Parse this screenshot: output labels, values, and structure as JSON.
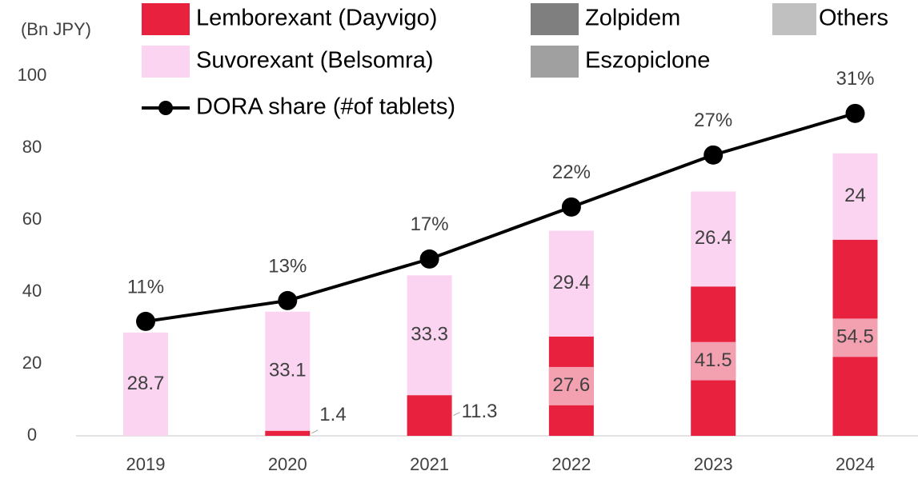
{
  "chart_data": {
    "type": "bar",
    "y_label": "(Bn JPY)",
    "categories": [
      "2019",
      "2020",
      "2021",
      "2022",
      "2023",
      "2024"
    ],
    "ylim": [
      0,
      100
    ],
    "yticks": [
      0,
      20,
      40,
      60,
      80,
      100
    ],
    "y2lim": [
      0,
      34.6
    ],
    "series": [
      {
        "name": "Lemborexant (Dayvigo)",
        "color": "#e8213f",
        "values": [
          null,
          1.4,
          11.3,
          27.6,
          41.5,
          54.5
        ]
      },
      {
        "name": "Suvorexant (Belsomra)",
        "color": "#fad4f0",
        "values": [
          28.7,
          33.1,
          33.3,
          29.4,
          26.4,
          24.0
        ]
      },
      {
        "name": "Zolpidem",
        "color": "#7f7f7f",
        "values": [
          null,
          null,
          null,
          null,
          null,
          null
        ]
      },
      {
        "name": "Eszopiclone",
        "color": "#a0a0a0",
        "values": [
          null,
          null,
          null,
          null,
          null,
          null
        ]
      },
      {
        "name": "Others",
        "color": "#c0c0c0",
        "values": [
          null,
          null,
          null,
          null,
          null,
          null
        ]
      },
      {
        "name": "DORA share (#of tablets)",
        "type": "line",
        "axis": "y2",
        "color": "#000000",
        "values": [
          11,
          13,
          17,
          22,
          27,
          31
        ],
        "value_labels": [
          "11%",
          "13%",
          "17%",
          "22%",
          "27%",
          "31%"
        ]
      }
    ]
  }
}
